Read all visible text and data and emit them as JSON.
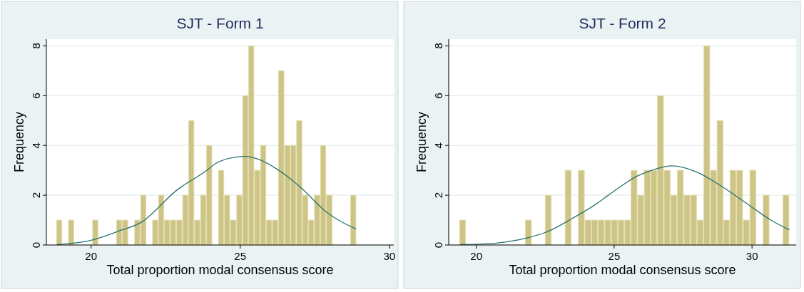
{
  "chart_data": [
    {
      "type": "histogram",
      "title": "SJT - Form 1",
      "xlabel": "Total proportion modal consensus score",
      "ylabel": "Frequency",
      "xlim": [
        18.5,
        30.15
      ],
      "xticks": [
        20,
        25,
        30
      ],
      "ylim": [
        0,
        8.27
      ],
      "yticks": [
        0,
        2,
        4,
        6,
        8
      ],
      "grid": "y",
      "series": [
        {
          "color": "#cdc487",
          "bins": [
            18.83,
            19.03,
            19.23,
            19.43,
            19.63,
            19.84,
            20.04,
            20.24,
            20.44,
            20.64,
            20.84,
            21.04,
            21.24,
            21.45,
            21.65,
            21.85,
            22.05,
            22.25,
            22.45,
            22.65,
            22.85,
            23.06,
            23.26,
            23.46,
            23.66,
            23.86,
            24.06,
            24.26,
            24.46,
            24.66,
            24.87,
            25.07,
            25.27,
            25.47,
            25.67,
            25.87,
            26.07,
            26.27,
            26.48,
            26.68,
            26.88,
            27.08,
            27.28,
            27.48,
            27.68,
            27.88,
            28.09,
            28.29,
            28.49,
            28.69,
            28.89
          ],
          "values": [
            1,
            0,
            1,
            0,
            0,
            0,
            1,
            0,
            0,
            0,
            1,
            1,
            0,
            1,
            2,
            0,
            1,
            2,
            1,
            1,
            1,
            2,
            5,
            1,
            2,
            4,
            0,
            3,
            2,
            1,
            2,
            6,
            8,
            3,
            4,
            1,
            1,
            7,
            4,
            4,
            5,
            2,
            1,
            2,
            4,
            2,
            0,
            0,
            0,
            2
          ]
        },
        {
          "type": "line",
          "color": "#2d7370",
          "x": [
            18.85,
            20.0,
            20.88,
            21.69,
            22.87,
            23.88,
            24.2,
            25.0,
            25.18,
            25.6,
            26.23,
            27.05,
            27.86,
            28.89
          ],
          "values": [
            0.02,
            0.19,
            0.54,
            0.92,
            2.2,
            3.0,
            3.29,
            3.55,
            3.56,
            3.45,
            3.05,
            2.29,
            1.35,
            0.64
          ]
        }
      ]
    },
    {
      "type": "histogram",
      "title": "SJT - Form 2",
      "xlabel": "Total proportion modal consensus score",
      "ylabel": "Frequency",
      "xlim": [
        19.0,
        31.6
      ],
      "xticks": [
        20,
        25,
        30
      ],
      "ylim": [
        0,
        8.27
      ],
      "yticks": [
        0,
        2,
        4,
        6,
        8
      ],
      "grid": "y",
      "series": [
        {
          "color": "#cdc487",
          "bins": [
            19.38,
            19.62,
            19.86,
            20.1,
            20.34,
            20.58,
            20.82,
            21.06,
            21.3,
            21.54,
            21.77,
            22.01,
            22.25,
            22.49,
            22.73,
            22.97,
            23.21,
            23.45,
            23.69,
            23.93,
            24.17,
            24.41,
            24.65,
            24.89,
            25.13,
            25.37,
            25.6,
            25.84,
            26.08,
            26.32,
            26.56,
            26.8,
            27.04,
            27.28,
            27.52,
            27.76,
            28.0,
            28.24,
            28.48,
            28.72,
            28.96,
            29.19,
            29.43,
            29.67,
            29.91,
            30.15,
            30.39,
            30.63,
            30.87,
            31.11,
            31.35
          ],
          "values": [
            1,
            0,
            0,
            0,
            0,
            0,
            0,
            0,
            0,
            0,
            1,
            0,
            0,
            2,
            0,
            0,
            3,
            0,
            3,
            1,
            1,
            1,
            1,
            1,
            1,
            1,
            3,
            2,
            3,
            3,
            6,
            3,
            2,
            3,
            2,
            2,
            1,
            8,
            3,
            5,
            1,
            3,
            3,
            1,
            3,
            0,
            2,
            0,
            0,
            2
          ]
        },
        {
          "type": "line",
          "color": "#2d7370",
          "x": [
            19.43,
            20.22,
            21.89,
            22.59,
            23.47,
            24.35,
            24.79,
            25.84,
            26.5,
            27.07,
            28.04,
            28.92,
            29.97,
            30.67,
            31.35
          ],
          "values": [
            0.02,
            0.04,
            0.3,
            0.54,
            1.06,
            1.65,
            2.0,
            2.77,
            3.05,
            3.18,
            2.91,
            2.34,
            1.54,
            1.01,
            0.61
          ]
        }
      ]
    }
  ]
}
